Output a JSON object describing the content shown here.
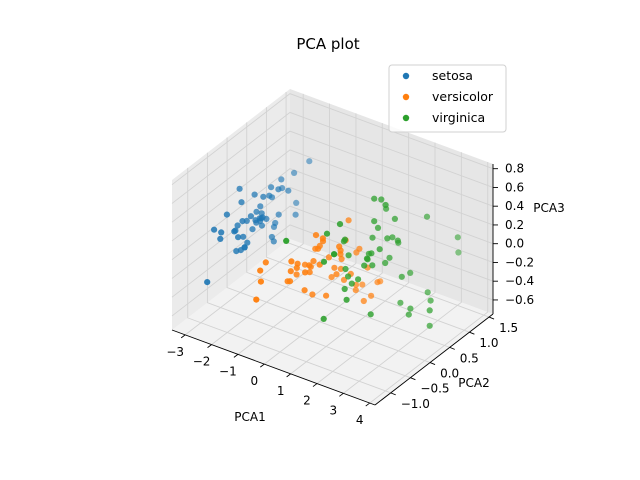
{
  "chart_data": {
    "type": "scatter",
    "projection": "3d",
    "title": "PCA plot",
    "xlabel": "PCA1",
    "ylabel": "PCA2",
    "zlabel": "PCA3",
    "xlim": [
      -3.5,
      4.2
    ],
    "ylim": [
      -1.4,
      1.6
    ],
    "zlim": [
      -0.75,
      0.85
    ],
    "xticks": [
      "−3",
      "−2",
      "−1",
      "0",
      "1",
      "2",
      "3",
      "4"
    ],
    "yticks": [
      "−1.0",
      "−0.5",
      "0.0",
      "0.5",
      "1.0",
      "1.5"
    ],
    "zticks": [
      "−0.6",
      "−0.4",
      "−0.2",
      "0.0",
      "0.2",
      "0.4",
      "0.6",
      "0.8"
    ],
    "grid": true,
    "legend_position": "top-right",
    "series": [
      {
        "name": "setosa",
        "color": "#1f77b4",
        "points": [
          [
            -2.68,
            0.32,
            -0.03
          ],
          [
            -2.71,
            -0.18,
            -0.21
          ],
          [
            -2.89,
            -0.14,
            0.02
          ],
          [
            -2.75,
            -0.32,
            0.03
          ],
          [
            -2.73,
            0.33,
            0.09
          ],
          [
            -2.28,
            0.74,
            0.17
          ],
          [
            -2.82,
            -0.09,
            0.26
          ],
          [
            -2.63,
            0.16,
            -0.02
          ],
          [
            -2.89,
            -0.58,
            0.02
          ],
          [
            -2.67,
            -0.11,
            -0.2
          ],
          [
            -2.51,
            0.65,
            -0.08
          ],
          [
            -2.61,
            0.01,
            0.1
          ],
          [
            -2.79,
            -0.24,
            -0.21
          ],
          [
            -3.23,
            -0.51,
            0.06
          ],
          [
            -2.64,
            1.18,
            -0.14
          ],
          [
            -2.38,
            1.34,
            0.28
          ],
          [
            -2.62,
            0.81,
            0.14
          ],
          [
            -2.65,
            0.31,
            0.03
          ],
          [
            -2.2,
            0.87,
            -0.12
          ],
          [
            -2.59,
            0.51,
            0.25
          ],
          [
            -2.31,
            0.39,
            -0.26
          ],
          [
            -2.54,
            0.43,
            0.19
          ],
          [
            -3.22,
            0.13,
            0.29
          ],
          [
            -2.3,
            0.1,
            0.09
          ],
          [
            -2.36,
            -0.04,
            0.1
          ],
          [
            -2.51,
            -0.15,
            -0.12
          ],
          [
            -2.47,
            0.14,
            0.05
          ],
          [
            -2.56,
            0.37,
            -0.04
          ],
          [
            -2.64,
            0.31,
            -0.1
          ],
          [
            -2.63,
            -0.19,
            0.11
          ],
          [
            -2.59,
            -0.2,
            -0.05
          ],
          [
            -2.41,
            0.41,
            -0.23
          ],
          [
            -2.65,
            0.81,
            0.23
          ],
          [
            -2.6,
            1.1,
            0.21
          ],
          [
            -2.67,
            -0.11,
            -0.2
          ],
          [
            -2.87,
            0.08,
            0.0
          ],
          [
            -2.63,
            0.61,
            -0.21
          ],
          [
            -2.8,
            0.23,
            0.24
          ],
          [
            -2.99,
            -0.49,
            0.05
          ],
          [
            -2.59,
            0.23,
            -0.02
          ],
          [
            -2.77,
            0.26,
            0.05
          ],
          [
            -2.85,
            -0.94,
            -0.32
          ],
          [
            -3.0,
            -0.34,
            0.19
          ],
          [
            -2.41,
            0.19,
            0.27
          ],
          [
            -2.21,
            0.44,
            0.29
          ],
          [
            -2.71,
            -0.25,
            -0.05
          ],
          [
            -2.54,
            0.5,
            0.15
          ],
          [
            -2.84,
            -0.23,
            0.0
          ],
          [
            -2.54,
            0.58,
            -0.15
          ],
          [
            -2.7,
            0.11,
            -0.08
          ]
        ]
      },
      {
        "name": "versicolor",
        "color": "#ff7f0e",
        "points": [
          [
            1.28,
            0.69,
            -0.41
          ],
          [
            0.93,
            0.32,
            -0.02
          ],
          [
            1.46,
            0.5,
            -0.34
          ],
          [
            0.18,
            -0.83,
            0.18
          ],
          [
            1.09,
            0.07,
            -0.15
          ],
          [
            0.64,
            -0.42,
            0.06
          ],
          [
            1.1,
            0.28,
            0.05
          ],
          [
            -0.75,
            -1.0,
            0.04
          ],
          [
            1.04,
            0.23,
            -0.38
          ],
          [
            -0.01,
            -0.72,
            0.02
          ],
          [
            -0.51,
            -1.26,
            -0.16
          ],
          [
            0.51,
            -0.1,
            0.02
          ],
          [
            0.26,
            -0.55,
            -0.21
          ],
          [
            0.98,
            -0.12,
            0.11
          ],
          [
            -0.17,
            -0.25,
            -0.08
          ],
          [
            0.93,
            0.47,
            -0.41
          ],
          [
            0.66,
            -0.35,
            0.29
          ],
          [
            0.23,
            -0.33,
            -0.33
          ],
          [
            0.94,
            -0.54,
            0.41
          ],
          [
            0.04,
            -0.58,
            0.06
          ],
          [
            1.12,
            -0.08,
            0.26
          ],
          [
            0.36,
            0.07,
            -0.26
          ],
          [
            1.3,
            -0.33,
            0.25
          ],
          [
            0.92,
            -0.18,
            -0.09
          ],
          [
            0.71,
            0.15,
            -0.28
          ],
          [
            0.9,
            0.33,
            -0.37
          ],
          [
            1.33,
            0.24,
            -0.47
          ],
          [
            1.56,
            0.27,
            -0.4
          ],
          [
            0.81,
            -0.16,
            -0.04
          ],
          [
            -0.31,
            -0.37,
            -0.16
          ],
          [
            -0.07,
            -0.7,
            -0.1
          ],
          [
            -0.19,
            -0.68,
            -0.12
          ],
          [
            0.14,
            -0.31,
            -0.05
          ],
          [
            1.38,
            -0.42,
            0.33
          ],
          [
            0.59,
            -0.48,
            0.39
          ],
          [
            0.81,
            0.2,
            0.35
          ],
          [
            1.22,
            0.41,
            -0.18
          ],
          [
            0.81,
            -0.37,
            -0.27
          ],
          [
            0.25,
            -0.27,
            0.14
          ],
          [
            0.16,
            -0.68,
            0.06
          ],
          [
            0.46,
            -0.67,
            0.04
          ],
          [
            0.89,
            -0.03,
            0.02
          ],
          [
            0.23,
            -0.4,
            -0.07
          ],
          [
            -0.71,
            -1.01,
            -0.07
          ],
          [
            0.36,
            -0.5,
            0.05
          ],
          [
            0.33,
            -0.21,
            0.16
          ],
          [
            0.38,
            -0.29,
            0.16
          ],
          [
            0.64,
            0.12,
            -0.16
          ],
          [
            -0.91,
            -0.75,
            0.03
          ],
          [
            0.3,
            -0.35,
            0.04
          ]
        ]
      },
      {
        "name": "virginica",
        "color": "#2ca02c",
        "points": [
          [
            2.53,
            -0.01,
            0.76
          ],
          [
            1.41,
            -0.57,
            0.3
          ],
          [
            2.62,
            0.34,
            -0.11
          ],
          [
            1.97,
            -0.18,
            0.11
          ],
          [
            2.35,
            -0.04,
            0.28
          ],
          [
            3.4,
            0.55,
            -0.35
          ],
          [
            0.52,
            -1.19,
            0.55
          ],
          [
            2.93,
            0.35,
            -0.42
          ],
          [
            2.32,
            -0.25,
            -0.35
          ],
          [
            2.92,
            0.78,
            0.42
          ],
          [
            1.66,
            0.24,
            0.24
          ],
          [
            1.8,
            -0.22,
            -0.04
          ],
          [
            2.17,
            0.22,
            0.03
          ],
          [
            1.34,
            -0.78,
            0.28
          ],
          [
            1.59,
            -0.54,
            0.63
          ],
          [
            1.9,
            0.12,
            0.48
          ],
          [
            1.95,
            0.04,
            0.04
          ],
          [
            3.49,
            1.18,
            0.13
          ],
          [
            3.8,
            0.26,
            -0.32
          ],
          [
            1.3,
            -0.76,
            -0.34
          ],
          [
            2.43,
            0.38,
            0.22
          ],
          [
            1.2,
            -0.61,
            0.51
          ],
          [
            3.5,
            0.46,
            -0.58
          ],
          [
            1.39,
            -0.2,
            -0.06
          ],
          [
            2.28,
            0.33,
            0.28
          ],
          [
            2.61,
            0.56,
            -0.14
          ],
          [
            1.26,
            -0.18,
            0.0
          ],
          [
            1.29,
            -0.12,
            0.13
          ],
          [
            2.12,
            -0.21,
            0.21
          ],
          [
            2.39,
            0.46,
            -0.45
          ],
          [
            2.84,
            0.37,
            -0.5
          ],
          [
            3.23,
            1.37,
            -0.12
          ],
          [
            2.16,
            -0.22,
            0.21
          ],
          [
            1.44,
            -0.14,
            -0.15
          ],
          [
            1.78,
            -0.5,
            -0.17
          ],
          [
            3.08,
            0.69,
            -0.34
          ],
          [
            2.14,
            0.14,
            0.73
          ],
          [
            1.9,
            0.05,
            0.16
          ],
          [
            1.17,
            -0.16,
            0.28
          ],
          [
            2.11,
            0.37,
            0.03
          ],
          [
            2.31,
            0.18,
            0.32
          ],
          [
            1.92,
            0.41,
            0.52
          ],
          [
            1.41,
            -0.57,
            0.3
          ],
          [
            2.56,
            0.28,
            0.29
          ],
          [
            2.42,
            0.3,
            0.5
          ],
          [
            1.94,
            0.19,
            0.39
          ],
          [
            1.53,
            -0.38,
            -0.12
          ],
          [
            1.76,
            0.08,
            0.13
          ],
          [
            1.9,
            0.12,
            0.72
          ],
          [
            1.39,
            -0.28,
            0.36
          ]
        ]
      }
    ]
  }
}
